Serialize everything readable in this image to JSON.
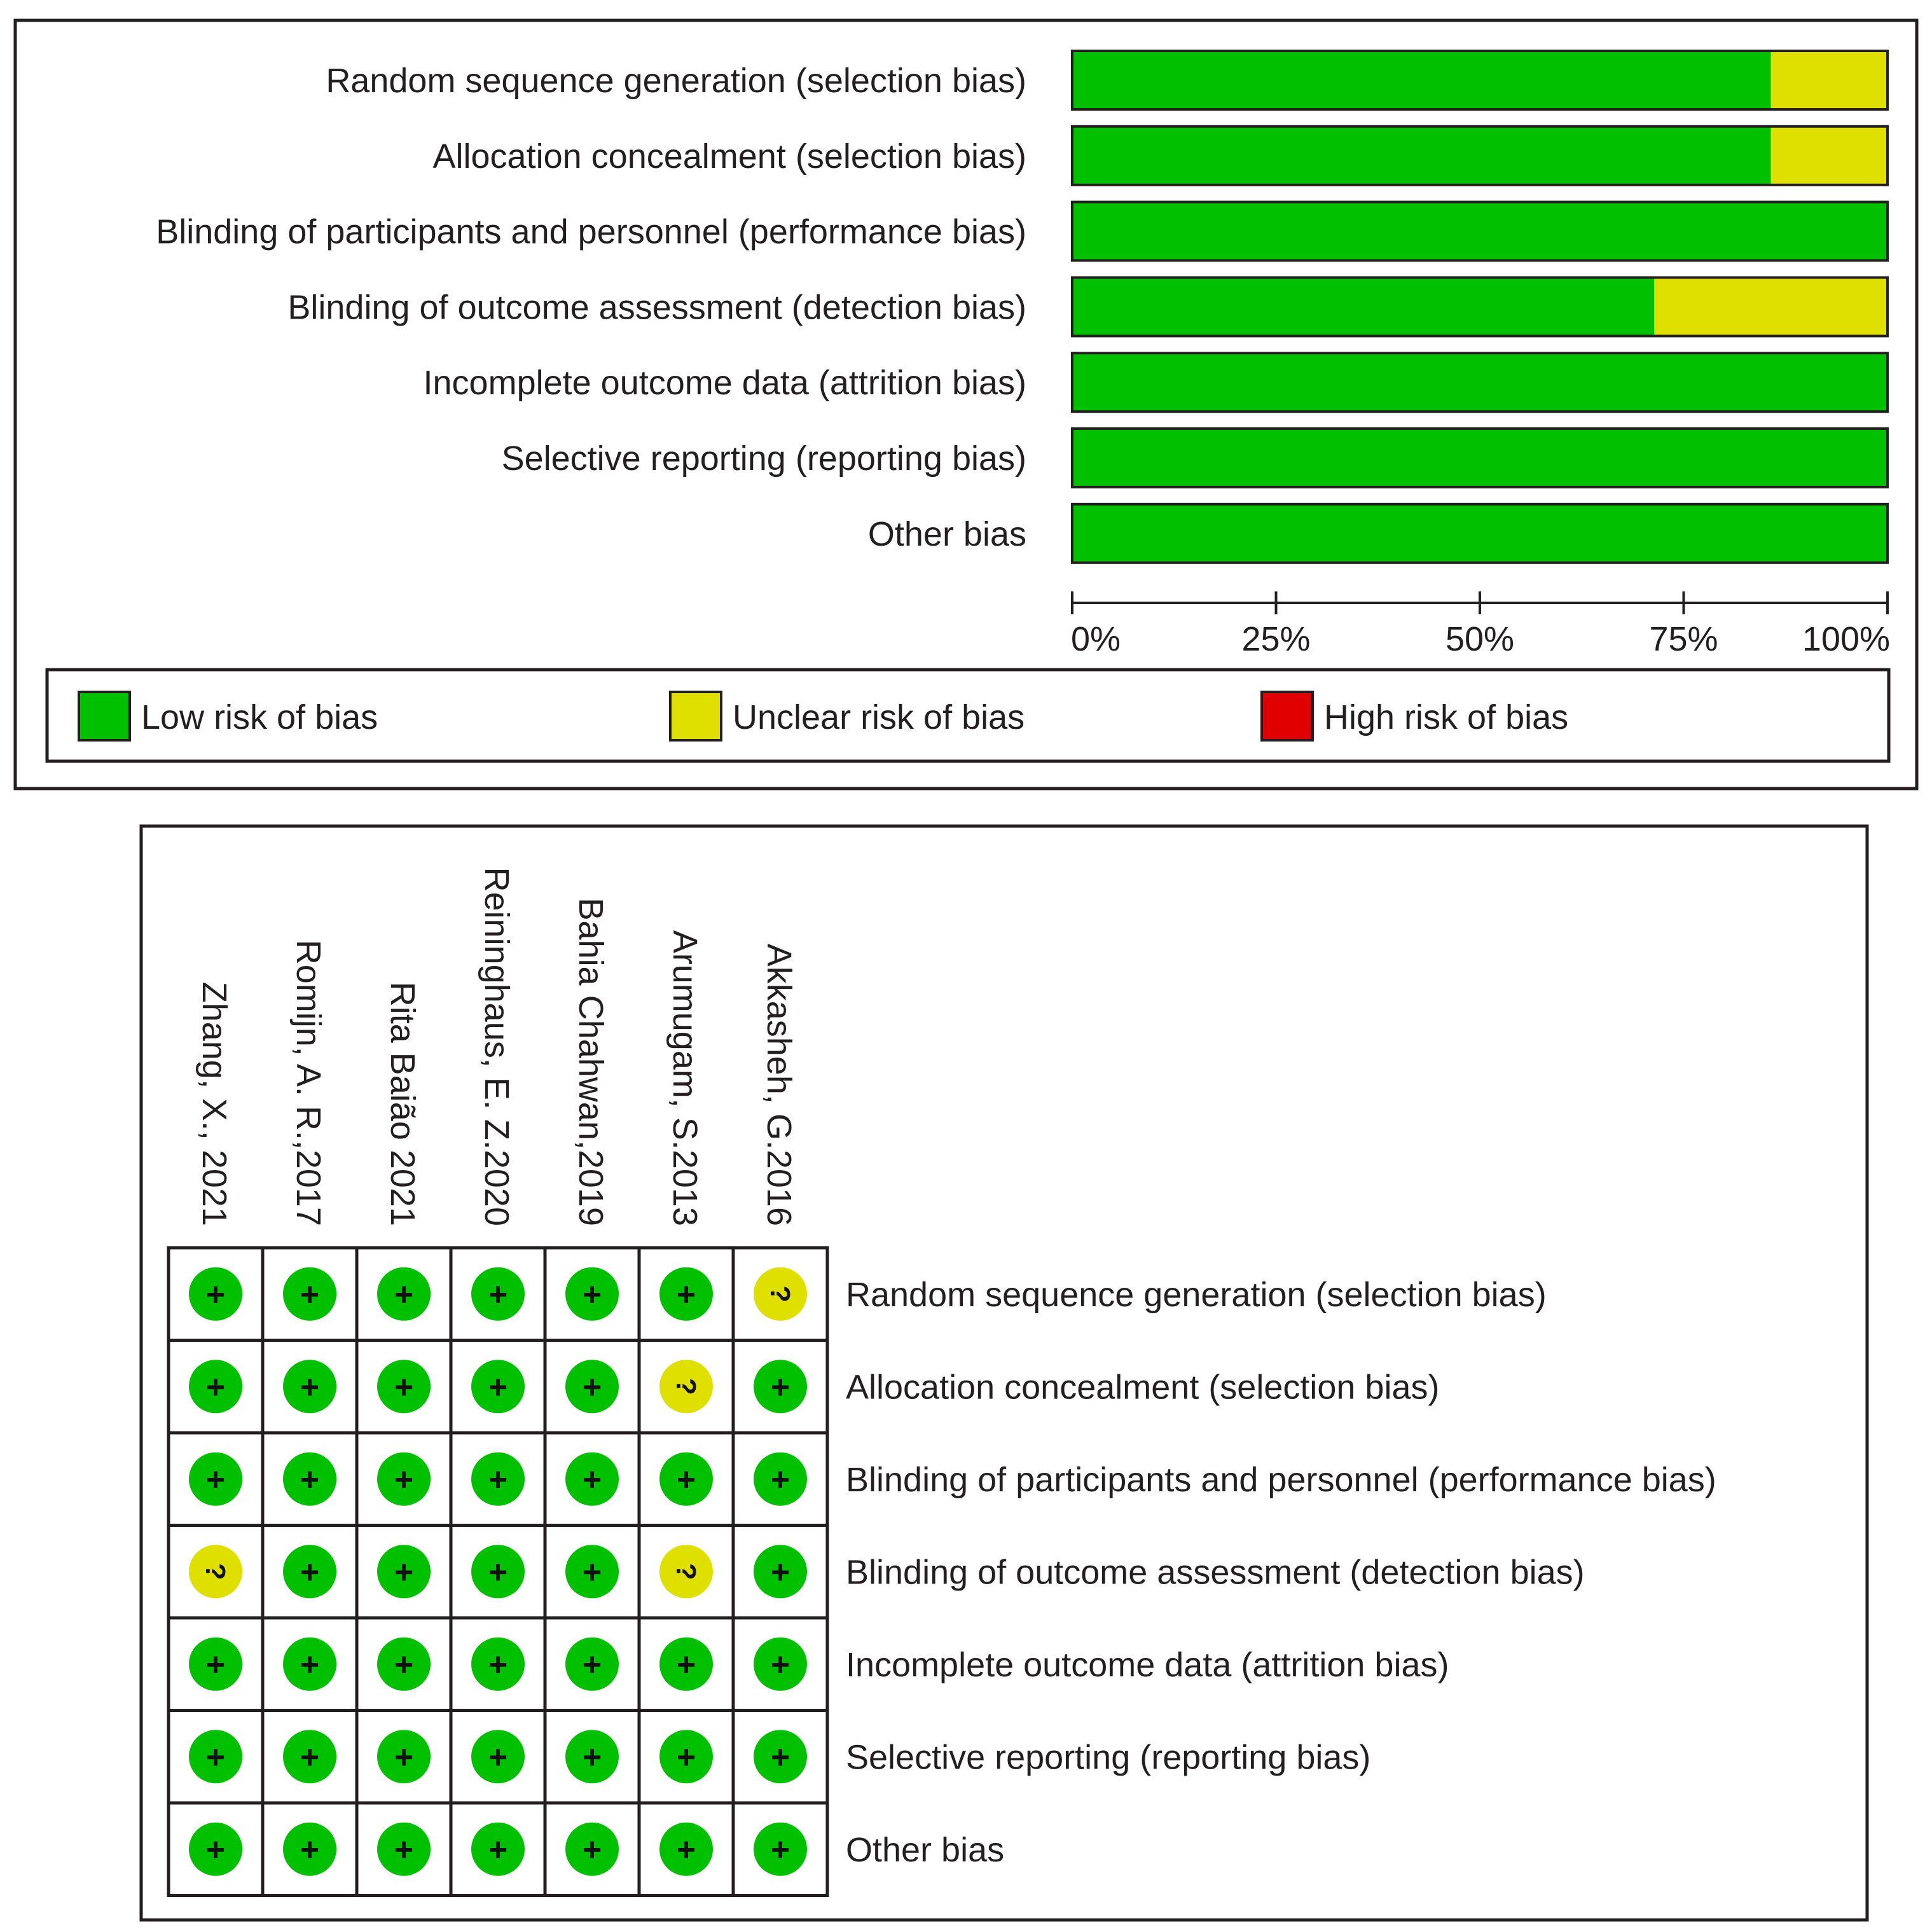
{
  "colors": {
    "low": "#00c000",
    "unclear": "#e0e000",
    "high": "#e00000",
    "frame": "#231f20"
  },
  "chart_data": [
    {
      "type": "bar",
      "subtype": "stacked-horizontal-percent",
      "title": "",
      "categories": [
        "Random sequence generation (selection bias)",
        "Allocation concealment (selection bias)",
        "Blinding of participants and personnel (performance bias)",
        "Blinding of outcome assessment (detection bias)",
        "Incomplete outcome data (attrition bias)",
        "Selective reporting (reporting bias)",
        "Other bias"
      ],
      "series": [
        {
          "name": "Low risk of bias",
          "key": "low",
          "values": [
            85.7,
            85.7,
            100,
            71.4,
            100,
            100,
            100
          ]
        },
        {
          "name": "Unclear risk of bias",
          "key": "unclear",
          "values": [
            14.3,
            14.3,
            0,
            28.6,
            0,
            0,
            0
          ]
        },
        {
          "name": "High risk of bias",
          "key": "high",
          "values": [
            0,
            0,
            0,
            0,
            0,
            0,
            0
          ]
        }
      ],
      "xlim": [
        0,
        100
      ],
      "xticks": [
        "0%",
        "25%",
        "50%",
        "75%",
        "100%"
      ],
      "legend": {
        "position": "bottom",
        "items": [
          {
            "label": "Low risk of bias",
            "key": "low"
          },
          {
            "label": "Unclear risk of bias",
            "key": "unclear"
          },
          {
            "label": "High risk of bias",
            "key": "high"
          }
        ]
      }
    },
    {
      "type": "heatmap",
      "subtype": "risk-of-bias-summary",
      "studies": [
        "Zhang, X.,  2021",
        "Romijn, A. R.,2017",
        "Rita Baião 2021",
        "Reininghaus, E. Z.2020",
        "Bahia Chahwan,2019",
        "Arumugam, S.2013",
        "Akkasheh, G.2016"
      ],
      "domains": [
        "Random sequence generation (selection bias)",
        "Allocation concealment (selection bias)",
        "Blinding of participants and personnel (performance bias)",
        "Blinding of outcome assessment (detection bias)",
        "Incomplete outcome data (attrition bias)",
        "Selective reporting (reporting bias)",
        "Other bias"
      ],
      "judgements": [
        [
          "low",
          "low",
          "low",
          "low",
          "low",
          "low",
          "unclear"
        ],
        [
          "low",
          "low",
          "low",
          "low",
          "low",
          "unclear",
          "low"
        ],
        [
          "low",
          "low",
          "low",
          "low",
          "low",
          "low",
          "low"
        ],
        [
          "unclear",
          "low",
          "low",
          "low",
          "low",
          "unclear",
          "low"
        ],
        [
          "low",
          "low",
          "low",
          "low",
          "low",
          "low",
          "low"
        ],
        [
          "low",
          "low",
          "low",
          "low",
          "low",
          "low",
          "low"
        ],
        [
          "low",
          "low",
          "low",
          "low",
          "low",
          "low",
          "low"
        ]
      ],
      "symbols": {
        "low": "+",
        "unclear": "?",
        "high": "-"
      }
    }
  ]
}
